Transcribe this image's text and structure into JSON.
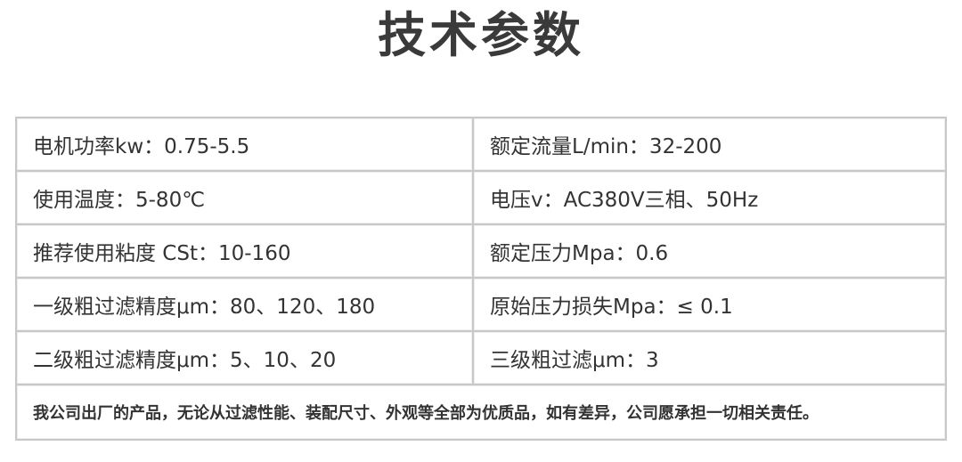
{
  "header": {
    "title": "技术参数"
  },
  "table": {
    "rows": [
      [
        "电机功率kw：0.75-5.5",
        "额定流量L/min：32-200"
      ],
      [
        "使用温度：5-80℃",
        "电压v：AC380V三相、50Hz"
      ],
      [
        "推荐使用粘度 CSt：10-160",
        "额定压力Mpa：0.6"
      ],
      [
        "一级粗过滤精度μm：80、120、180",
        "原始压力损失Mpa：≤ 0.1"
      ],
      [
        "二级粗过滤精度μm：5、10、20",
        "三级粗过滤μm：3"
      ]
    ],
    "note": "我公司出厂的产品，无论从过滤性能、装配尺寸、外观等全部为优质品，如有差异，公司愿承担一切相关责任。"
  }
}
